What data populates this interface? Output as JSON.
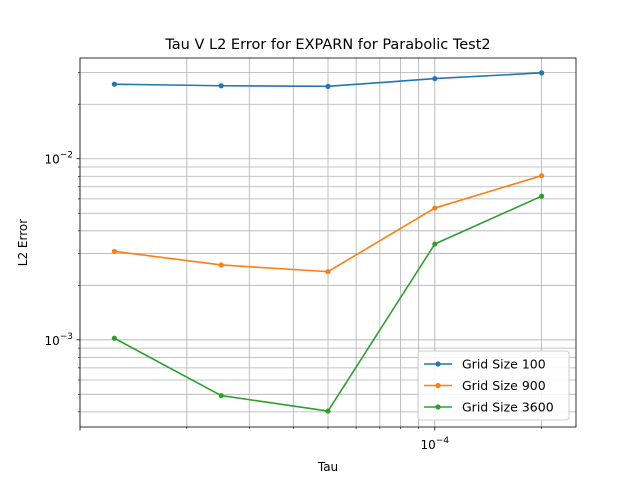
{
  "chart_data": {
    "type": "line",
    "title": "Tau V L2 Error for EXPARN for Parabolic Test2",
    "xlabel": "Tau",
    "ylabel": "L2 Error",
    "xscale": "log",
    "yscale": "log",
    "grid": true,
    "legend_position": "lower-right",
    "x_tick_labels": [
      "10^-4"
    ],
    "y_tick_labels": [
      "10^-3",
      "10^-2"
    ],
    "x": [
      1.25e-05,
      2.5e-05,
      5e-05,
      0.0001,
      0.0002
    ],
    "series": [
      {
        "name": "Grid Size 100",
        "color": "#1f77b4",
        "values": [
          0.0258,
          0.0253,
          0.0251,
          0.0277,
          0.0298
        ]
      },
      {
        "name": "Grid Size 900",
        "color": "#ff7f0e",
        "values": [
          0.00308,
          0.00259,
          0.00238,
          0.00534,
          0.00806
        ]
      },
      {
        "name": "Grid Size 3600",
        "color": "#2ca02c",
        "values": [
          0.00102,
          0.000492,
          0.000404,
          0.00338,
          0.00621
        ]
      }
    ]
  }
}
